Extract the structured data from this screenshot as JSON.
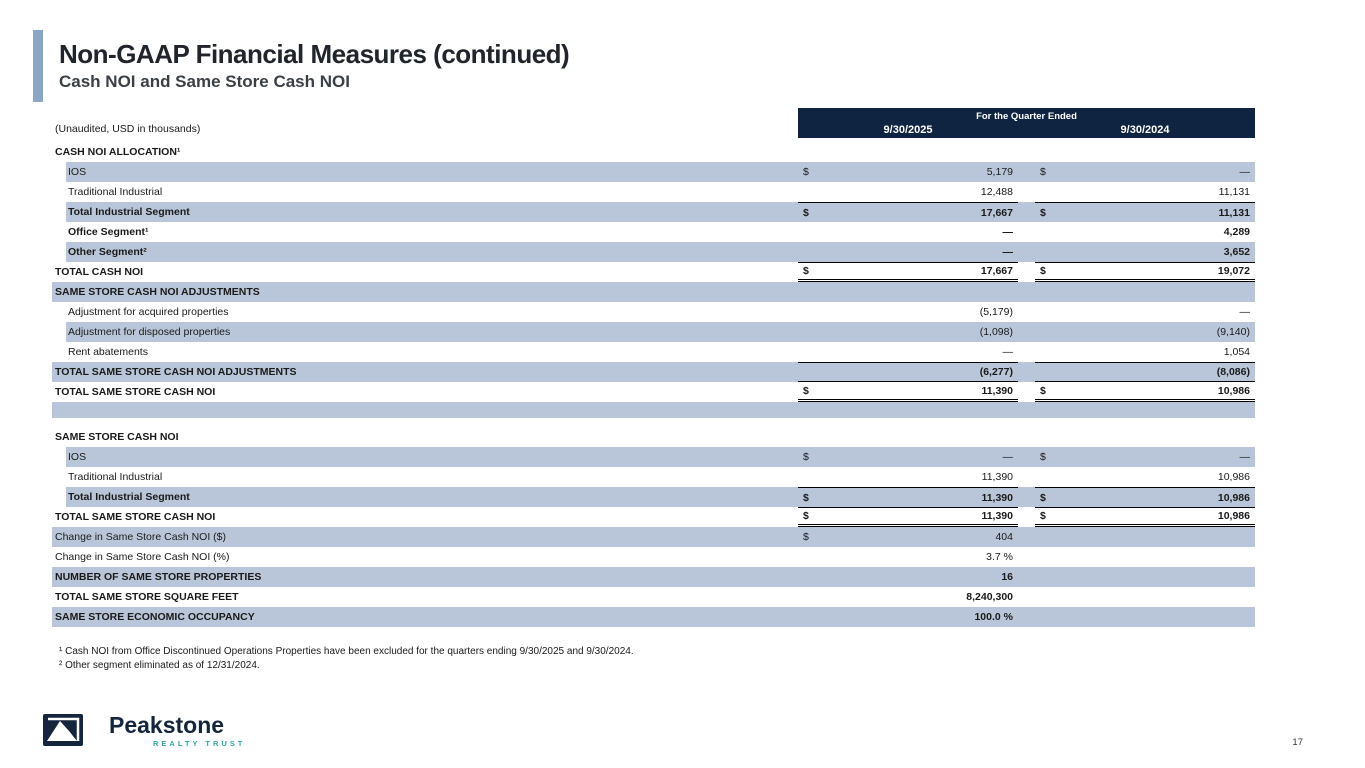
{
  "page": {
    "title": "Non-GAAP Financial Measures (continued)",
    "subtitle": "Cash NOI and Same Store Cash NOI",
    "page_number": "17"
  },
  "colors": {
    "navy": "#0f2440",
    "row_shade": "#b9c6d9",
    "accent_bar": "#8ba6c5",
    "teal": "#2fa8a4"
  },
  "table": {
    "unaudited_note": "(Unaudited, USD in thousands)",
    "header": {
      "span_label": "For the Quarter Ended",
      "col1": "9/30/2025",
      "col2": "9/30/2024"
    },
    "rows": [
      {
        "label": "CASH NOI ALLOCATION¹",
        "bold": true,
        "cells": [
          null,
          null
        ]
      },
      {
        "label": "IOS",
        "indent": true,
        "shaded": true,
        "cells": [
          {
            "d": "$",
            "v": "5,179"
          },
          {
            "d": "$",
            "v": "—"
          }
        ]
      },
      {
        "label": "Traditional Industrial",
        "indent": true,
        "cells": [
          {
            "v": "12,488"
          },
          {
            "v": "11,131"
          }
        ]
      },
      {
        "label": "Total Industrial Segment",
        "indent": true,
        "bold": true,
        "shaded": true,
        "cells": [
          {
            "d": "$",
            "v": "17,667",
            "top": true
          },
          {
            "d": "$",
            "v": "11,131",
            "top": true
          }
        ]
      },
      {
        "label": "Office Segment¹",
        "indent": true,
        "bold": true,
        "cells": [
          {
            "v": "—"
          },
          {
            "v": "4,289"
          }
        ]
      },
      {
        "label": "Other Segment²",
        "indent": true,
        "bold": true,
        "shaded": true,
        "cells": [
          {
            "v": "—"
          },
          {
            "v": "3,652"
          }
        ]
      },
      {
        "label": "TOTAL CASH NOI",
        "bold": true,
        "cells": [
          {
            "d": "$",
            "v": "17,667",
            "top": true,
            "bottom": "double"
          },
          {
            "d": "$",
            "v": "19,072",
            "top": true,
            "bottom": "double"
          }
        ]
      },
      {
        "label": "SAME STORE CASH NOI ADJUSTMENTS",
        "bold": true,
        "shaded": true,
        "cells": [
          null,
          null
        ]
      },
      {
        "label": "Adjustment for acquired properties",
        "indent": true,
        "cells": [
          {
            "v": "(5,179)"
          },
          {
            "v": "—"
          }
        ]
      },
      {
        "label": "Adjustment for disposed properties",
        "indent": true,
        "shaded": true,
        "cells": [
          {
            "v": "(1,098)"
          },
          {
            "v": "(9,140)"
          }
        ]
      },
      {
        "label": "Rent abatements",
        "indent": true,
        "cells": [
          {
            "v": "—"
          },
          {
            "v": "1,054"
          }
        ]
      },
      {
        "label": "TOTAL SAME STORE CASH NOI ADJUSTMENTS",
        "bold": true,
        "shaded": true,
        "cells": [
          {
            "v": "(6,277)",
            "top": true,
            "bottom": "single"
          },
          {
            "v": "(8,086)",
            "top": true,
            "bottom": "single"
          }
        ]
      },
      {
        "label": "TOTAL SAME STORE CASH NOI",
        "bold": true,
        "cells": [
          {
            "d": "$",
            "v": "11,390",
            "bottom": "double"
          },
          {
            "d": "$",
            "v": "10,986",
            "bottom": "double"
          }
        ]
      },
      {
        "label": "",
        "shaded": true,
        "h": 16,
        "cells": [
          null,
          null
        ]
      },
      {
        "label": "",
        "h": 9,
        "cells": [
          null,
          null
        ]
      },
      {
        "label": "SAME STORE CASH NOI",
        "bold": true,
        "cells": [
          null,
          null
        ]
      },
      {
        "label": "IOS",
        "indent": true,
        "shaded": true,
        "cells": [
          {
            "d": "$",
            "v": "—"
          },
          {
            "d": "$",
            "v": "—"
          }
        ]
      },
      {
        "label": "Traditional Industrial",
        "indent": true,
        "cells": [
          {
            "v": "11,390"
          },
          {
            "v": "10,986"
          }
        ]
      },
      {
        "label": "Total Industrial Segment",
        "indent": true,
        "bold": true,
        "shaded": true,
        "cells": [
          {
            "d": "$",
            "v": "11,390",
            "top": true
          },
          {
            "d": "$",
            "v": "10,986",
            "top": true
          }
        ]
      },
      {
        "label": "TOTAL SAME STORE CASH NOI",
        "bold": true,
        "cells": [
          {
            "d": "$",
            "v": "11,390",
            "top": true,
            "bottom": "double"
          },
          {
            "d": "$",
            "v": "10,986",
            "top": true,
            "bottom": "double"
          }
        ]
      },
      {
        "label": "Change in Same Store Cash NOI ($)",
        "shaded": true,
        "cells": [
          {
            "d": "$",
            "v": "404"
          },
          null
        ]
      },
      {
        "label": "Change in Same Store Cash NOI (%)",
        "cells": [
          {
            "v": "3.7 %"
          },
          null
        ]
      },
      {
        "label": "NUMBER OF SAME STORE PROPERTIES",
        "bold": true,
        "shaded": true,
        "cells": [
          {
            "v": "16"
          },
          null
        ]
      },
      {
        "label": "TOTAL SAME STORE SQUARE FEET",
        "bold": true,
        "cells": [
          {
            "v": "8,240,300"
          },
          null
        ]
      },
      {
        "label": "SAME STORE ECONOMIC OCCUPANCY",
        "bold": true,
        "shaded": true,
        "cells": [
          {
            "v": "100.0 %"
          },
          null
        ]
      }
    ]
  },
  "footnotes": [
    "¹ Cash NOI from Office Discontinued Operations Properties have been excluded for the quarters ending 9/30/2025 and 9/30/2024.",
    "² Other segment eliminated as of 12/31/2024."
  ],
  "logo": {
    "brand_bold": "Peak",
    "brand_light": "stone",
    "tagline": "REALTY TRUST"
  }
}
